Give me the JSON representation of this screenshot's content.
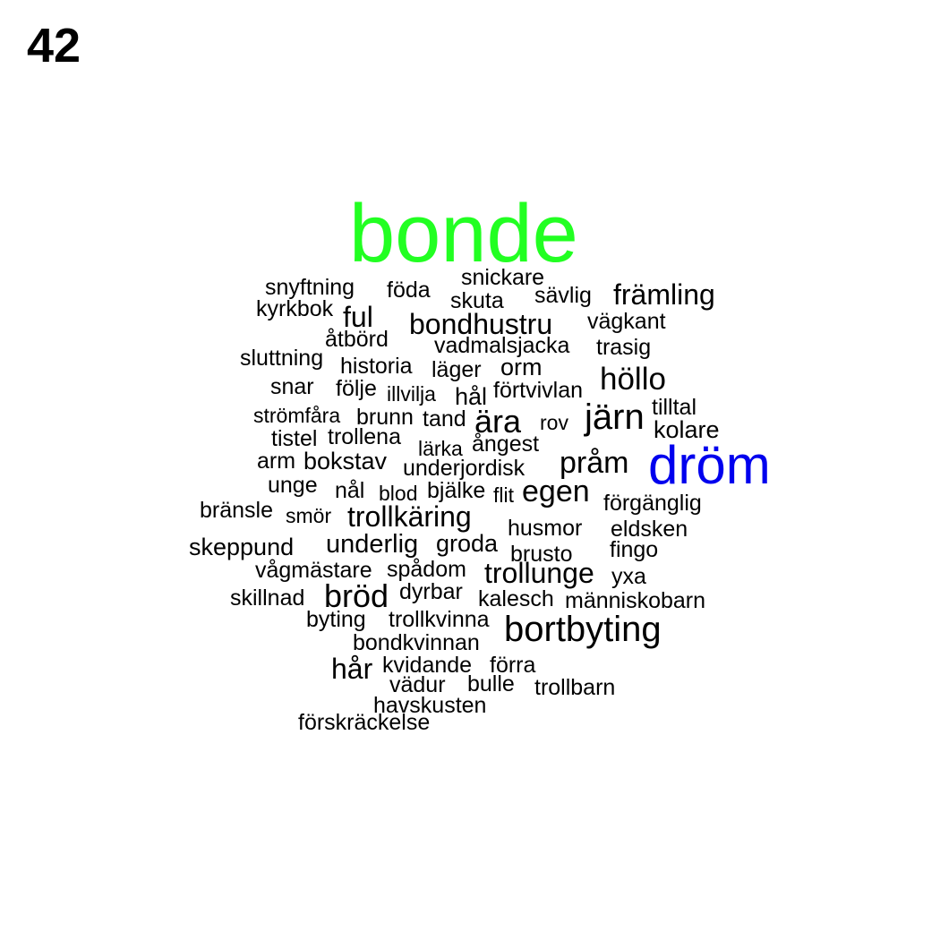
{
  "page_number": "42",
  "colors": {
    "text": "#000000",
    "bonde": "#22ff22",
    "drom": "#0000ee"
  },
  "words": [
    {
      "text": "bonde",
      "color": "#22ff22"
    },
    {
      "text": "dröm",
      "color": "#0000ee"
    },
    {
      "text": "snickare"
    },
    {
      "text": "snyftning"
    },
    {
      "text": "föda"
    },
    {
      "text": "skuta"
    },
    {
      "text": "sävlig"
    },
    {
      "text": "främling"
    },
    {
      "text": "kyrkbok"
    },
    {
      "text": "ful"
    },
    {
      "text": "bondhustru"
    },
    {
      "text": "vägkant"
    },
    {
      "text": "åtbörd"
    },
    {
      "text": "vadmalsjacka"
    },
    {
      "text": "trasig"
    },
    {
      "text": "sluttning"
    },
    {
      "text": "historia"
    },
    {
      "text": "läger"
    },
    {
      "text": "orm"
    },
    {
      "text": "höllo"
    },
    {
      "text": "snar"
    },
    {
      "text": "följe"
    },
    {
      "text": "illvilja"
    },
    {
      "text": "hål"
    },
    {
      "text": "förtvivlan"
    },
    {
      "text": "tilltal"
    },
    {
      "text": "strömfåra"
    },
    {
      "text": "brunn"
    },
    {
      "text": "tand"
    },
    {
      "text": "ära"
    },
    {
      "text": "rov"
    },
    {
      "text": "järn"
    },
    {
      "text": "kolare"
    },
    {
      "text": "tistel"
    },
    {
      "text": "trollena"
    },
    {
      "text": "lärka"
    },
    {
      "text": "ångest"
    },
    {
      "text": "arm"
    },
    {
      "text": "bokstav"
    },
    {
      "text": "underjordisk"
    },
    {
      "text": "pråm"
    },
    {
      "text": "unge"
    },
    {
      "text": "nål"
    },
    {
      "text": "blod"
    },
    {
      "text": "bjälke"
    },
    {
      "text": "flit"
    },
    {
      "text": "egen"
    },
    {
      "text": "förgänglig"
    },
    {
      "text": "bränsle"
    },
    {
      "text": "smör"
    },
    {
      "text": "trollkäring"
    },
    {
      "text": "husmor"
    },
    {
      "text": "eldsken"
    },
    {
      "text": "skeppund"
    },
    {
      "text": "underlig"
    },
    {
      "text": "groda"
    },
    {
      "text": "brusto"
    },
    {
      "text": "fingo"
    },
    {
      "text": "vågmästare"
    },
    {
      "text": "spådom"
    },
    {
      "text": "trollunge"
    },
    {
      "text": "yxa"
    },
    {
      "text": "skillnad"
    },
    {
      "text": "bröd"
    },
    {
      "text": "dyrbar"
    },
    {
      "text": "kalesch"
    },
    {
      "text": "människobarn"
    },
    {
      "text": "byting"
    },
    {
      "text": "trollkvinna"
    },
    {
      "text": "bortbyting"
    },
    {
      "text": "bondkvinnan"
    },
    {
      "text": "hår"
    },
    {
      "text": "kvidande"
    },
    {
      "text": "förra"
    },
    {
      "text": "vädur"
    },
    {
      "text": "bulle"
    },
    {
      "text": "trollbarn"
    },
    {
      "text": "havskusten"
    },
    {
      "text": "förskräckelse"
    }
  ]
}
